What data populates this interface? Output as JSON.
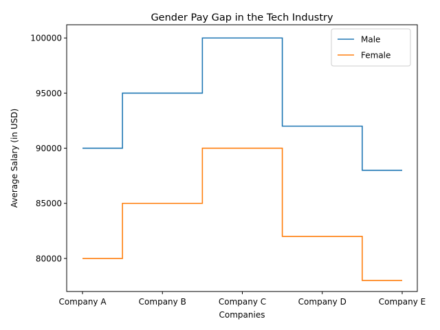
{
  "chart_data": {
    "type": "line",
    "step": "mid",
    "title": "Gender Pay Gap in the Tech Industry",
    "xlabel": "Companies",
    "ylabel": "Average Salary (in USD)",
    "categories": [
      "Company A",
      "Company B",
      "Company C",
      "Company D",
      "Company E"
    ],
    "ylim": [
      77000,
      101200
    ],
    "yticks": [
      80000,
      85000,
      90000,
      95000,
      100000
    ],
    "grid": false,
    "legend_position": "top-right",
    "series": [
      {
        "name": "Male",
        "color": "#1f77b4",
        "values": [
          90000,
          95000,
          100000,
          92000,
          88000
        ]
      },
      {
        "name": "Female",
        "color": "#ff7f0e",
        "values": [
          80000,
          85000,
          90000,
          82000,
          78000
        ]
      }
    ]
  }
}
